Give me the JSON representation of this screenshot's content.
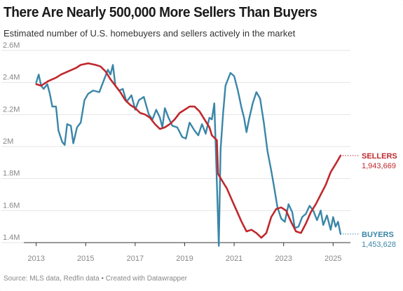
{
  "title": "There Are Nearly 500,000 More Sellers Than Buyers",
  "subtitle": "Estimated number of U.S. homebuyers and sellers actively in the market",
  "source": "Source: MLS data, Redfin data • Created with Datawrapper",
  "colors": {
    "sellers": "#c0282d",
    "buyers": "#3a86a8",
    "grid": "#e4e4e4",
    "tick": "#888888"
  },
  "chart_data": {
    "type": "line",
    "title": "There Are Nearly 500,000 More Sellers Than Buyers",
    "xlabel": "",
    "ylabel": "",
    "xlim": [
      2012.5,
      2025.7
    ],
    "ylim": [
      1400000,
      2600000
    ],
    "x_ticks": [
      2013,
      2015,
      2017,
      2019,
      2021,
      2023,
      2025
    ],
    "y_ticks": [
      {
        "value": 1400000,
        "label": "1.4M"
      },
      {
        "value": 1600000,
        "label": "1.6M"
      },
      {
        "value": 1800000,
        "label": "1.8M"
      },
      {
        "value": 2000000,
        "label": "2M"
      },
      {
        "value": 2200000,
        "label": "2.2M"
      },
      {
        "value": 2400000,
        "label": "2.4M"
      },
      {
        "value": 2600000,
        "label": "2.6M"
      }
    ],
    "grid": true,
    "series": [
      {
        "name": "SELLERS",
        "end_value_label": "1,943,669",
        "points": [
          [
            2013.0,
            2390000
          ],
          [
            2013.2,
            2380000
          ],
          [
            2013.5,
            2410000
          ],
          [
            2013.8,
            2430000
          ],
          [
            2014.0,
            2450000
          ],
          [
            2014.3,
            2470000
          ],
          [
            2014.6,
            2490000
          ],
          [
            2014.8,
            2510000
          ],
          [
            2015.1,
            2520000
          ],
          [
            2015.4,
            2510000
          ],
          [
            2015.6,
            2500000
          ],
          [
            2015.8,
            2470000
          ],
          [
            2016.0,
            2420000
          ],
          [
            2016.2,
            2380000
          ],
          [
            2016.4,
            2340000
          ],
          [
            2016.6,
            2290000
          ],
          [
            2016.8,
            2260000
          ],
          [
            2017.0,
            2240000
          ],
          [
            2017.2,
            2210000
          ],
          [
            2017.4,
            2200000
          ],
          [
            2017.6,
            2180000
          ],
          [
            2017.8,
            2140000
          ],
          [
            2018.0,
            2110000
          ],
          [
            2018.2,
            2120000
          ],
          [
            2018.4,
            2140000
          ],
          [
            2018.6,
            2170000
          ],
          [
            2018.8,
            2210000
          ],
          [
            2019.0,
            2230000
          ],
          [
            2019.2,
            2250000
          ],
          [
            2019.4,
            2250000
          ],
          [
            2019.6,
            2220000
          ],
          [
            2019.8,
            2170000
          ],
          [
            2020.0,
            2120000
          ],
          [
            2020.1,
            2070000
          ],
          [
            2020.3,
            2040000
          ],
          [
            2020.35,
            1830000
          ],
          [
            2020.5,
            1790000
          ],
          [
            2020.7,
            1740000
          ],
          [
            2020.9,
            1670000
          ],
          [
            2021.1,
            1600000
          ],
          [
            2021.3,
            1530000
          ],
          [
            2021.5,
            1470000
          ],
          [
            2021.7,
            1480000
          ],
          [
            2021.9,
            1460000
          ],
          [
            2022.1,
            1430000
          ],
          [
            2022.3,
            1460000
          ],
          [
            2022.5,
            1560000
          ],
          [
            2022.7,
            1610000
          ],
          [
            2022.9,
            1620000
          ],
          [
            2023.1,
            1600000
          ],
          [
            2023.3,
            1530000
          ],
          [
            2023.5,
            1470000
          ],
          [
            2023.7,
            1460000
          ],
          [
            2023.9,
            1520000
          ],
          [
            2024.1,
            1590000
          ],
          [
            2024.3,
            1640000
          ],
          [
            2024.5,
            1700000
          ],
          [
            2024.7,
            1760000
          ],
          [
            2024.9,
            1840000
          ],
          [
            2025.1,
            1890000
          ],
          [
            2025.3,
            1943669
          ]
        ]
      },
      {
        "name": "BUYERS",
        "end_value_label": "1,453,628",
        "points": [
          [
            2013.0,
            2400000
          ],
          [
            2013.1,
            2450000
          ],
          [
            2013.2,
            2380000
          ],
          [
            2013.3,
            2360000
          ],
          [
            2013.45,
            2390000
          ],
          [
            2013.55,
            2330000
          ],
          [
            2013.65,
            2250000
          ],
          [
            2013.8,
            2250000
          ],
          [
            2013.9,
            2100000
          ],
          [
            2014.05,
            2030000
          ],
          [
            2014.15,
            2010000
          ],
          [
            2014.25,
            2140000
          ],
          [
            2014.4,
            2130000
          ],
          [
            2014.5,
            2020000
          ],
          [
            2014.65,
            2120000
          ],
          [
            2014.8,
            2150000
          ],
          [
            2014.95,
            2290000
          ],
          [
            2015.1,
            2330000
          ],
          [
            2015.3,
            2350000
          ],
          [
            2015.55,
            2340000
          ],
          [
            2015.75,
            2420000
          ],
          [
            2015.9,
            2480000
          ],
          [
            2016.0,
            2450000
          ],
          [
            2016.1,
            2510000
          ],
          [
            2016.2,
            2380000
          ],
          [
            2016.35,
            2350000
          ],
          [
            2016.5,
            2360000
          ],
          [
            2016.65,
            2280000
          ],
          [
            2016.85,
            2320000
          ],
          [
            2017.0,
            2230000
          ],
          [
            2017.15,
            2290000
          ],
          [
            2017.35,
            2310000
          ],
          [
            2017.55,
            2200000
          ],
          [
            2017.7,
            2170000
          ],
          [
            2017.85,
            2230000
          ],
          [
            2018.0,
            2180000
          ],
          [
            2018.1,
            2120000
          ],
          [
            2018.2,
            2240000
          ],
          [
            2018.35,
            2180000
          ],
          [
            2018.5,
            2130000
          ],
          [
            2018.7,
            2120000
          ],
          [
            2018.9,
            2060000
          ],
          [
            2019.05,
            2050000
          ],
          [
            2019.2,
            2150000
          ],
          [
            2019.4,
            2100000
          ],
          [
            2019.55,
            2070000
          ],
          [
            2019.7,
            2140000
          ],
          [
            2019.85,
            2080000
          ],
          [
            2020.0,
            2180000
          ],
          [
            2020.1,
            2170000
          ],
          [
            2020.2,
            2270000
          ],
          [
            2020.3,
            1780000
          ],
          [
            2020.38,
            1380000
          ],
          [
            2020.45,
            1980000
          ],
          [
            2020.55,
            2200000
          ],
          [
            2020.65,
            2380000
          ],
          [
            2020.85,
            2460000
          ],
          [
            2021.0,
            2440000
          ],
          [
            2021.15,
            2350000
          ],
          [
            2021.3,
            2240000
          ],
          [
            2021.4,
            2180000
          ],
          [
            2021.5,
            2090000
          ],
          [
            2021.6,
            2170000
          ],
          [
            2021.75,
            2270000
          ],
          [
            2021.9,
            2340000
          ],
          [
            2022.05,
            2300000
          ],
          [
            2022.2,
            2150000
          ],
          [
            2022.35,
            1970000
          ],
          [
            2022.5,
            1850000
          ],
          [
            2022.6,
            1760000
          ],
          [
            2022.75,
            1620000
          ],
          [
            2022.9,
            1550000
          ],
          [
            2023.05,
            1530000
          ],
          [
            2023.2,
            1640000
          ],
          [
            2023.35,
            1590000
          ],
          [
            2023.45,
            1490000
          ],
          [
            2023.6,
            1500000
          ],
          [
            2023.75,
            1560000
          ],
          [
            2023.9,
            1580000
          ],
          [
            2024.05,
            1630000
          ],
          [
            2024.2,
            1600000
          ],
          [
            2024.35,
            1540000
          ],
          [
            2024.5,
            1600000
          ],
          [
            2024.6,
            1510000
          ],
          [
            2024.75,
            1570000
          ],
          [
            2024.9,
            1480000
          ],
          [
            2025.0,
            1560000
          ],
          [
            2025.1,
            1500000
          ],
          [
            2025.2,
            1530000
          ],
          [
            2025.3,
            1453628
          ]
        ]
      }
    ]
  }
}
